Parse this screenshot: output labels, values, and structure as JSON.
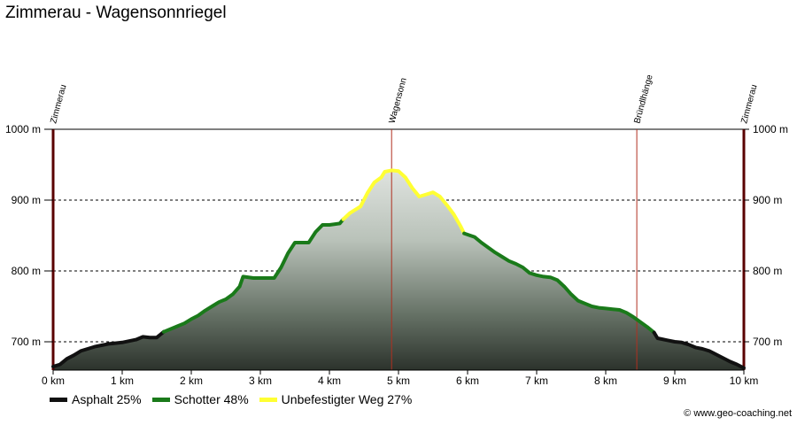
{
  "title": "Zimmerau - Wagensonnriegel",
  "credit": "© www.geo-coaching.net",
  "chart_data": {
    "type": "area",
    "xlabel": "",
    "ylabel": "",
    "x_unit": "km",
    "y_unit": "m",
    "xlim": [
      0,
      10
    ],
    "ylim": [
      660,
      1000
    ],
    "x_ticks": [
      0,
      1,
      2,
      3,
      4,
      5,
      6,
      7,
      8,
      9,
      10
    ],
    "x_tick_labels": [
      "0 km",
      "1 km",
      "2 km",
      "3 km",
      "4 km",
      "5 km",
      "6 km",
      "7 km",
      "8 km",
      "9 km",
      "10 km"
    ],
    "y_ticks": [
      700,
      800,
      900,
      1000
    ],
    "y_tick_labels": [
      "700 m",
      "800 m",
      "900 m",
      "1000 m"
    ],
    "grid": "horizontal dashed",
    "legend_position": "bottom-left",
    "legend": [
      {
        "label": "Asphalt 25%",
        "color": "#111111"
      },
      {
        "label": "Schotter 48%",
        "color": "#1a7a1a"
      },
      {
        "label": "Unbefestigter Weg 27%",
        "color": "#ffff33"
      }
    ],
    "waypoints": [
      {
        "name": "Zimmerau",
        "x": 0
      },
      {
        "name": "Wagensonn",
        "x": 4.9
      },
      {
        "name": "Bründlhänge",
        "x": 8.45
      },
      {
        "name": "Zimmerau",
        "x": 10
      }
    ],
    "series": [
      {
        "surface": "Asphalt",
        "color": "#111111",
        "points": [
          [
            0,
            665
          ],
          [
            0.1,
            668
          ],
          [
            0.2,
            676
          ],
          [
            0.3,
            681
          ],
          [
            0.4,
            687
          ],
          [
            0.5,
            690
          ],
          [
            0.6,
            693
          ],
          [
            0.7,
            695
          ],
          [
            0.8,
            697
          ],
          [
            0.9,
            698
          ],
          [
            1.0,
            699
          ],
          [
            1.1,
            701
          ],
          [
            1.2,
            703
          ],
          [
            1.3,
            707
          ],
          [
            1.4,
            706
          ],
          [
            1.5,
            706
          ],
          [
            1.55,
            710
          ],
          [
            1.6,
            714
          ]
        ]
      },
      {
        "surface": "Schotter",
        "color": "#1a7a1a",
        "points": [
          [
            1.6,
            714
          ],
          [
            1.7,
            718
          ],
          [
            1.8,
            722
          ],
          [
            1.9,
            726
          ],
          [
            2.0,
            732
          ],
          [
            2.1,
            737
          ],
          [
            2.2,
            744
          ],
          [
            2.3,
            750
          ],
          [
            2.4,
            756
          ],
          [
            2.5,
            760
          ],
          [
            2.6,
            767
          ],
          [
            2.7,
            778
          ],
          [
            2.75,
            792
          ],
          [
            2.9,
            790
          ],
          [
            3.1,
            790
          ],
          [
            3.2,
            790
          ],
          [
            3.3,
            805
          ],
          [
            3.4,
            825
          ],
          [
            3.5,
            840
          ],
          [
            3.7,
            840
          ],
          [
            3.8,
            855
          ],
          [
            3.9,
            865
          ],
          [
            4.0,
            865
          ],
          [
            4.15,
            867
          ],
          [
            4.2,
            873
          ]
        ]
      },
      {
        "surface": "Unbefestigter Weg",
        "color": "#ffff33",
        "points": [
          [
            4.2,
            873
          ],
          [
            4.3,
            882
          ],
          [
            4.45,
            891
          ],
          [
            4.55,
            910
          ],
          [
            4.65,
            925
          ],
          [
            4.75,
            932
          ],
          [
            4.8,
            940
          ],
          [
            4.9,
            942
          ],
          [
            5.0,
            941
          ],
          [
            5.1,
            932
          ],
          [
            5.2,
            917
          ],
          [
            5.3,
            905
          ],
          [
            5.4,
            908
          ],
          [
            5.5,
            911
          ],
          [
            5.6,
            905
          ],
          [
            5.7,
            893
          ],
          [
            5.8,
            880
          ],
          [
            5.9,
            863
          ],
          [
            5.95,
            853
          ]
        ]
      },
      {
        "surface": "Schotter",
        "color": "#1a7a1a",
        "points": [
          [
            5.95,
            853
          ],
          [
            6.1,
            848
          ],
          [
            6.2,
            840
          ],
          [
            6.3,
            833
          ],
          [
            6.4,
            826
          ],
          [
            6.5,
            820
          ],
          [
            6.6,
            814
          ],
          [
            6.7,
            810
          ],
          [
            6.8,
            805
          ],
          [
            6.9,
            797
          ],
          [
            7.0,
            794
          ],
          [
            7.1,
            792
          ],
          [
            7.2,
            791
          ],
          [
            7.3,
            787
          ],
          [
            7.4,
            778
          ],
          [
            7.5,
            767
          ],
          [
            7.6,
            758
          ],
          [
            7.7,
            754
          ],
          [
            7.8,
            750
          ],
          [
            7.9,
            748
          ],
          [
            8.0,
            747
          ],
          [
            8.1,
            746
          ],
          [
            8.2,
            745
          ],
          [
            8.3,
            741
          ],
          [
            8.4,
            735
          ],
          [
            8.5,
            728
          ],
          [
            8.6,
            721
          ],
          [
            8.7,
            713
          ]
        ]
      },
      {
        "surface": "Asphalt",
        "color": "#111111",
        "points": [
          [
            8.7,
            713
          ],
          [
            8.75,
            705
          ],
          [
            8.9,
            702
          ],
          [
            9.0,
            700
          ],
          [
            9.1,
            699
          ],
          [
            9.2,
            696
          ],
          [
            9.3,
            692
          ],
          [
            9.4,
            690
          ],
          [
            9.5,
            687
          ],
          [
            9.6,
            682
          ],
          [
            9.7,
            677
          ],
          [
            9.8,
            672
          ],
          [
            9.9,
            668
          ],
          [
            10.0,
            663
          ]
        ]
      }
    ]
  }
}
